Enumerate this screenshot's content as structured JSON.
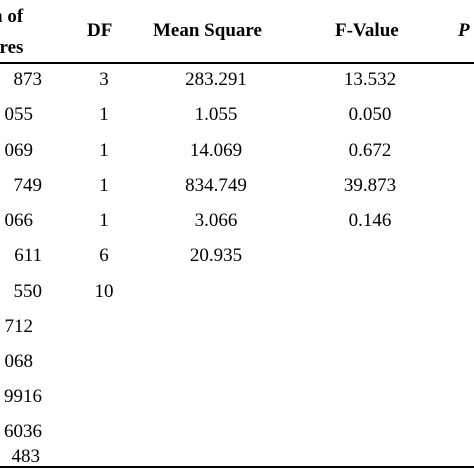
{
  "table": {
    "headers": {
      "sum_line1": "n of",
      "sum_line2": "ares",
      "df": "DF",
      "mean_square": "Mean Square",
      "f_value": "F-Value",
      "p": "P"
    },
    "rows": [
      {
        "sum": "873",
        "df": "3",
        "ms": "283.291",
        "fv": "13.532"
      },
      {
        "sum": "055",
        "df": "1",
        "ms": "1.055",
        "fv": "0.050"
      },
      {
        "sum": "069",
        "df": "1",
        "ms": "14.069",
        "fv": "0.672"
      },
      {
        "sum": "749",
        "df": "1",
        "ms": "834.749",
        "fv": "39.873"
      },
      {
        "sum": "066",
        "df": "1",
        "ms": "3.066",
        "fv": "0.146"
      },
      {
        "sum": "611",
        "df": "6",
        "ms": "20.935",
        "fv": ""
      },
      {
        "sum": "550",
        "df": "10",
        "ms": "",
        "fv": ""
      },
      {
        "sum": "712",
        "df": "",
        "ms": "",
        "fv": ""
      },
      {
        "sum": "068",
        "df": "",
        "ms": "",
        "fv": ""
      },
      {
        "sum": "9916",
        "df": "",
        "ms": "",
        "fv": ""
      },
      {
        "sum": "6036",
        "df": "",
        "ms": "",
        "fv": ""
      },
      {
        "sum": "483",
        "df": "",
        "ms": "",
        "fv": ""
      }
    ]
  }
}
